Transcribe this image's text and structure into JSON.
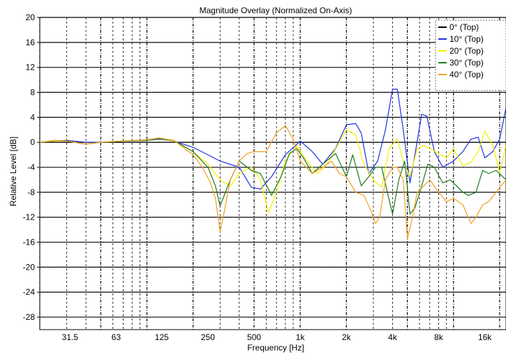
{
  "chart_data": {
    "type": "line",
    "title": "Magnitude Overlay (Normalized On-Axis)",
    "xlabel": "Frequency [Hz]",
    "ylabel": "Relative Level [dB]",
    "xscale": "log",
    "xlim": [
      20,
      22000
    ],
    "ylim": [
      -30,
      20
    ],
    "x_ticks": [
      {
        "value": 31.5,
        "label": "31.5"
      },
      {
        "value": 63,
        "label": "63"
      },
      {
        "value": 125,
        "label": "125"
      },
      {
        "value": 250,
        "label": "250"
      },
      {
        "value": 500,
        "label": "500"
      },
      {
        "value": 1000,
        "label": "1k"
      },
      {
        "value": 2000,
        "label": "2k"
      },
      {
        "value": 4000,
        "label": "4k"
      },
      {
        "value": 8000,
        "label": "8k"
      },
      {
        "value": 16000,
        "label": "16k"
      }
    ],
    "y_ticks": [
      20,
      16,
      12,
      8,
      4,
      0,
      -4,
      -8,
      -12,
      -16,
      -20,
      -24,
      -28
    ],
    "grid": true,
    "legend_position": "top-right",
    "series": [
      {
        "name": "0° (Top)",
        "color": "#000000",
        "x": [
          20,
          22000
        ],
        "y": [
          0,
          0
        ]
      },
      {
        "name": "10° (Top)",
        "color": "#1f2fe0",
        "x": [
          20,
          25,
          30,
          40,
          50,
          70,
          100,
          120,
          150,
          200,
          250,
          300,
          400,
          480,
          550,
          650,
          800,
          1000,
          1200,
          1400,
          1700,
          2000,
          2300,
          2500,
          2800,
          3200,
          3600,
          4000,
          4300,
          4700,
          5200,
          5600,
          6200,
          6700,
          7500,
          8500,
          10000,
          11500,
          13000,
          14500,
          16000,
          18000,
          20000,
          22000
        ],
        "y": [
          0,
          0.2,
          0.3,
          0,
          0,
          0.2,
          0.3,
          0.5,
          0.2,
          -0.8,
          -2,
          -3,
          -4,
          -7.2,
          -7.5,
          -5.5,
          -2,
          0.2,
          -1.5,
          -3.5,
          -1,
          2.8,
          3,
          1.5,
          -5,
          -3,
          2,
          8.5,
          8.5,
          2,
          -6.5,
          -2,
          4.5,
          4.2,
          -1.5,
          -4,
          -3,
          -1.5,
          0.5,
          0.8,
          -2.5,
          -1.5,
          0.5,
          5.5
        ]
      },
      {
        "name": "20° (Top)",
        "color": "#f2f200",
        "x": [
          20,
          25,
          30,
          40,
          50,
          70,
          100,
          120,
          150,
          200,
          250,
          300,
          350,
          400,
          480,
          550,
          620,
          700,
          800,
          950,
          1100,
          1300,
          1500,
          1800,
          2000,
          2300,
          2600,
          3000,
          3400,
          3800,
          4300,
          4700,
          5200,
          5800,
          6400,
          7000,
          8000,
          9000,
          10000,
          11500,
          13000,
          14500,
          16000,
          18000,
          20000,
          22000
        ],
        "y": [
          0,
          0.2,
          0.2,
          -0.3,
          0,
          0.2,
          0.3,
          0.6,
          0.2,
          -1.5,
          -3.5,
          -6,
          -7,
          -5,
          -4,
          -6,
          -11.3,
          -8,
          -3,
          -0.5,
          -3,
          -5,
          -3.5,
          0,
          2,
          1.2,
          -3.5,
          -6,
          -7.2,
          -1,
          0.5,
          -3,
          -5.5,
          -1,
          -0.5,
          -1,
          -1.8,
          -2.5,
          -1,
          -3.8,
          -3.2,
          -1.5,
          1.8,
          -0.5,
          -4.8,
          -0.5
        ]
      },
      {
        "name": "30° (Top)",
        "color": "#1a7a1a",
        "x": [
          20,
          25,
          30,
          40,
          50,
          70,
          100,
          120,
          150,
          200,
          250,
          280,
          300,
          350,
          400,
          480,
          550,
          650,
          750,
          850,
          950,
          1050,
          1200,
          1400,
          1700,
          2000,
          2200,
          2500,
          2800,
          3100,
          3400,
          3700,
          4000,
          4400,
          4800,
          5200,
          5600,
          6200,
          6800,
          7500,
          8500,
          9500,
          10500,
          11500,
          12500,
          14000,
          15500,
          17000,
          19000,
          22000
        ],
        "y": [
          0,
          0.3,
          0.2,
          -0.3,
          0,
          0.2,
          0.3,
          0.6,
          0.3,
          -1.5,
          -4,
          -7,
          -10.2,
          -6,
          -3,
          -4.5,
          -5,
          -8.5,
          -5.5,
          -1.8,
          -1,
          -2.5,
          -5,
          -3.5,
          -1.8,
          -5.5,
          -2,
          -7,
          -5.5,
          -4,
          -4,
          -8,
          -11.5,
          -6,
          -3,
          -11.5,
          -10.5,
          -7,
          -3.5,
          -4,
          -6.5,
          -6,
          -7,
          -8,
          -8.5,
          -8,
          -4.5,
          -5,
          -4.5,
          -6
        ]
      },
      {
        "name": "40° (Top)",
        "color": "#f0a020",
        "x": [
          20,
          25,
          30,
          40,
          50,
          70,
          100,
          120,
          150,
          200,
          230,
          260,
          280,
          300,
          320,
          350,
          400,
          450,
          500,
          600,
          700,
          800,
          900,
          1000,
          1200,
          1400,
          1600,
          1800,
          2000,
          2300,
          2600,
          2900,
          3100,
          3300,
          3600,
          4000,
          4300,
          4700,
          5000,
          5400,
          5800,
          6400,
          7000,
          8000,
          9000,
          10000,
          11500,
          13000,
          14000,
          15500,
          17000,
          19000,
          22000
        ],
        "y": [
          0,
          0.3,
          0.2,
          -0.3,
          0,
          0.2,
          0.4,
          0.7,
          0.3,
          -2,
          -4,
          -6.5,
          -9,
          -14.3,
          -11,
          -6,
          -3,
          -1.8,
          -1.5,
          -1.5,
          1.5,
          2.7,
          0.5,
          -3,
          -5,
          -4,
          -3,
          -5,
          -5.5,
          -8,
          -8.5,
          -11,
          -13,
          -12,
          -6,
          -4,
          -4,
          -6,
          -15.5,
          -12,
          -8,
          -7,
          -6,
          -8,
          -9.5,
          -9,
          -10,
          -13,
          -12,
          -10,
          -9.5,
          -8,
          -6
        ]
      }
    ]
  }
}
